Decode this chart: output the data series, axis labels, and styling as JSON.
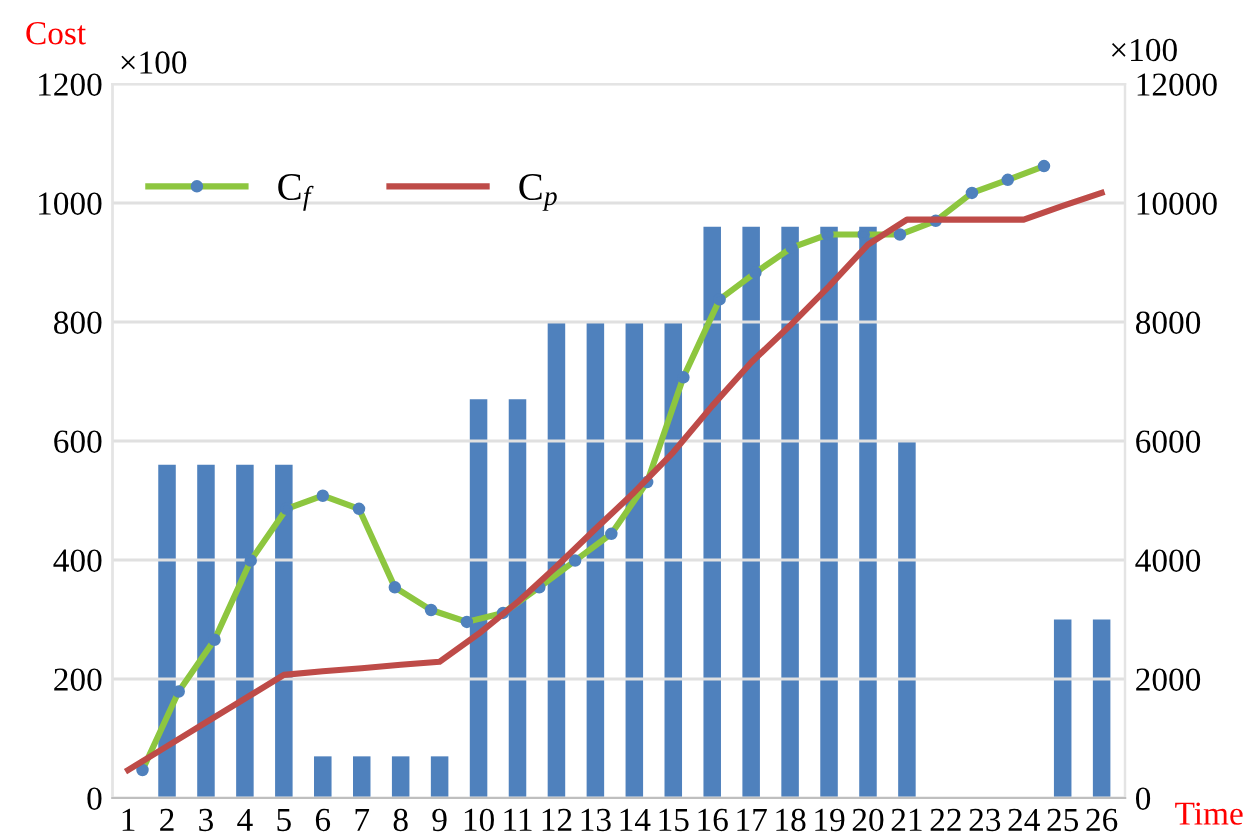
{
  "chart_data": {
    "type": "line",
    "ylabel": "Cost",
    "xlabel": "Time",
    "annotations": [
      "×100",
      "×100"
    ],
    "xlim": [
      0.6,
      26.6
    ],
    "xticks": [
      1,
      2,
      3,
      4,
      5,
      6,
      7,
      8,
      9,
      10,
      11,
      12,
      13,
      14,
      15,
      16,
      17,
      18,
      19,
      20,
      21,
      22,
      23,
      24,
      25,
      26
    ],
    "ylim": [
      0,
      1200
    ],
    "yticks": [
      0,
      200,
      400,
      600,
      800,
      1000,
      1200
    ],
    "y2lim": [
      0,
      12000
    ],
    "y2ticks": [
      0,
      2000,
      4000,
      6000,
      8000,
      10000,
      12000
    ],
    "grid": "y",
    "legend": "top left",
    "series": [
      {
        "type": "bar",
        "axis": "y2",
        "color": "#4f81bd",
        "x": [
          2,
          3,
          4,
          5,
          6,
          7,
          8,
          9,
          10,
          11,
          12,
          13,
          14,
          15,
          16,
          17,
          18,
          19,
          20,
          21,
          22,
          23,
          24,
          25,
          26
        ],
        "values": [
          5600,
          5600,
          5600,
          5600,
          700,
          700,
          700,
          700,
          6700,
          6700,
          8000,
          8000,
          8000,
          8000,
          9600,
          9600,
          9600,
          9600,
          9600,
          6000,
          null,
          null,
          null,
          3000,
          3000
        ]
      },
      {
        "name": "C$_{f}$",
        "color": "#8dc63f",
        "marker": "circle",
        "x": [
          1.37,
          2.3,
          3.22,
          4.15,
          5.07,
          6.0,
          6.93,
          7.85,
          8.78,
          9.7,
          10.63,
          11.56,
          12.48,
          13.41,
          14.33,
          15.26,
          16.19,
          17.11,
          18.04,
          18.96,
          19.89,
          20.82,
          21.74,
          22.67,
          23.59,
          24.52
        ],
        "values": [
          47,
          179,
          266,
          399,
          486,
          508,
          486,
          354,
          316,
          296,
          311,
          354,
          399,
          444,
          531,
          707,
          838,
          883,
          925,
          947,
          947,
          947,
          970,
          1017,
          1039,
          1062
        ]
      },
      {
        "name": "C$_{p}$",
        "color": "#be4b48",
        "marker": "none",
        "x": [
          1,
          2,
          3,
          4,
          5,
          6,
          7,
          8,
          9,
          10,
          11,
          12,
          13,
          14,
          15,
          16,
          17,
          18,
          19,
          20,
          21,
          22,
          23,
          24,
          25,
          26
        ],
        "values": [
          47,
          87,
          127,
          167,
          207,
          213,
          218,
          224,
          229,
          276,
          329,
          389,
          452,
          514,
          581,
          659,
          732,
          794,
          860,
          930,
          972,
          972,
          972,
          972,
          995,
          1017
        ]
      }
    ]
  }
}
